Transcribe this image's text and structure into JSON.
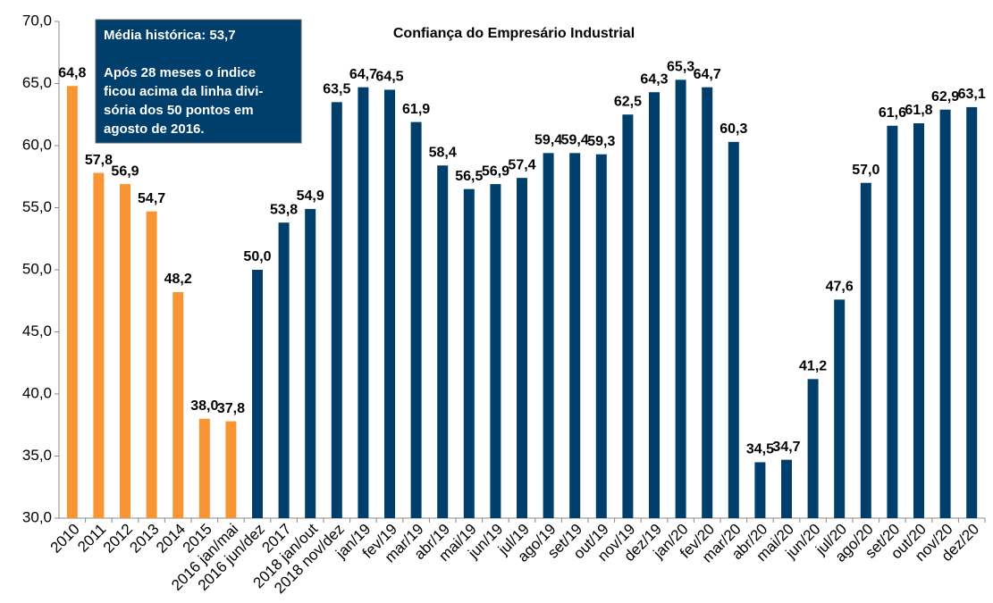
{
  "chart_data": {
    "type": "bar",
    "title": "Confiança do Empresário Industrial",
    "annotation": {
      "lines": [
        "Média histórica: 53,7",
        "",
        "Após 28 meses o índice",
        "ficou acima da linha divi-",
        "sória dos 50 pontos em",
        "agosto de 2016."
      ]
    },
    "categories": [
      "2010",
      "2011",
      "2012",
      "2013",
      "2014",
      "2015",
      "2016 jan/mai",
      "2016 jun/dez",
      "2017",
      "2018 jan/out",
      "2018 nov/dez",
      "jan/19",
      "fev/19",
      "mar/19",
      "abr/19",
      "mai/19",
      "jun/19",
      "jul/19",
      "ago/19",
      "set/19",
      "out/19",
      "nov/19",
      "dez/19",
      "jan/20",
      "fev/20",
      "mar/20",
      "abr/20",
      "mai/20",
      "jun/20",
      "jul/20",
      "ago/20",
      "set/20",
      "out/20",
      "nov/20",
      "dez/20"
    ],
    "values": [
      64.8,
      57.8,
      56.9,
      54.7,
      48.2,
      38.0,
      37.8,
      50.0,
      53.8,
      54.9,
      63.5,
      64.7,
      64.5,
      61.9,
      58.4,
      56.5,
      56.9,
      57.4,
      59.4,
      59.4,
      59.3,
      62.5,
      64.3,
      65.3,
      64.7,
      60.3,
      34.5,
      34.7,
      41.2,
      47.6,
      57.0,
      61.6,
      61.8,
      62.9,
      63.1
    ],
    "value_labels": [
      "64,8",
      "57,8",
      "56,9",
      "54,7",
      "48,2",
      "38,0",
      "37,8",
      "50,0",
      "53,8",
      "54,9",
      "63,5",
      "64,7",
      "64,5",
      "61,9",
      "58,4",
      "56,5",
      "56,9",
      "57,4",
      "59,4",
      "59,4",
      "59,3",
      "62,5",
      "64,3",
      "65,3",
      "64,7",
      "60,3",
      "34,5",
      "34,7",
      "41,2",
      "47,6",
      "57,0",
      "61,6",
      "61,8",
      "62,9",
      "63,1"
    ],
    "colors": [
      "#f79433",
      "#f79433",
      "#f79433",
      "#f79433",
      "#f79433",
      "#f79433",
      "#f79433",
      "#003f6b",
      "#003f6b",
      "#003f6b",
      "#003f6b",
      "#003f6b",
      "#003f6b",
      "#003f6b",
      "#003f6b",
      "#003f6b",
      "#003f6b",
      "#003f6b",
      "#003f6b",
      "#003f6b",
      "#003f6b",
      "#003f6b",
      "#003f6b",
      "#003f6b",
      "#003f6b",
      "#003f6b",
      "#003f6b",
      "#003f6b",
      "#003f6b",
      "#003f6b",
      "#003f6b",
      "#003f6b",
      "#003f6b",
      "#003f6b",
      "#003f6b"
    ],
    "ylim": [
      30,
      70
    ],
    "yticks": [
      {
        "value": 30,
        "label": "30,0"
      },
      {
        "value": 35,
        "label": "35,0"
      },
      {
        "value": 40,
        "label": "40,0"
      },
      {
        "value": 45,
        "label": "45,0"
      },
      {
        "value": 50,
        "label": "50,0"
      },
      {
        "value": 55,
        "label": "55,0"
      },
      {
        "value": 60,
        "label": "60,0"
      },
      {
        "value": 65,
        "label": "65,0"
      },
      {
        "value": 70,
        "label": "70,0"
      }
    ],
    "grid": false
  }
}
